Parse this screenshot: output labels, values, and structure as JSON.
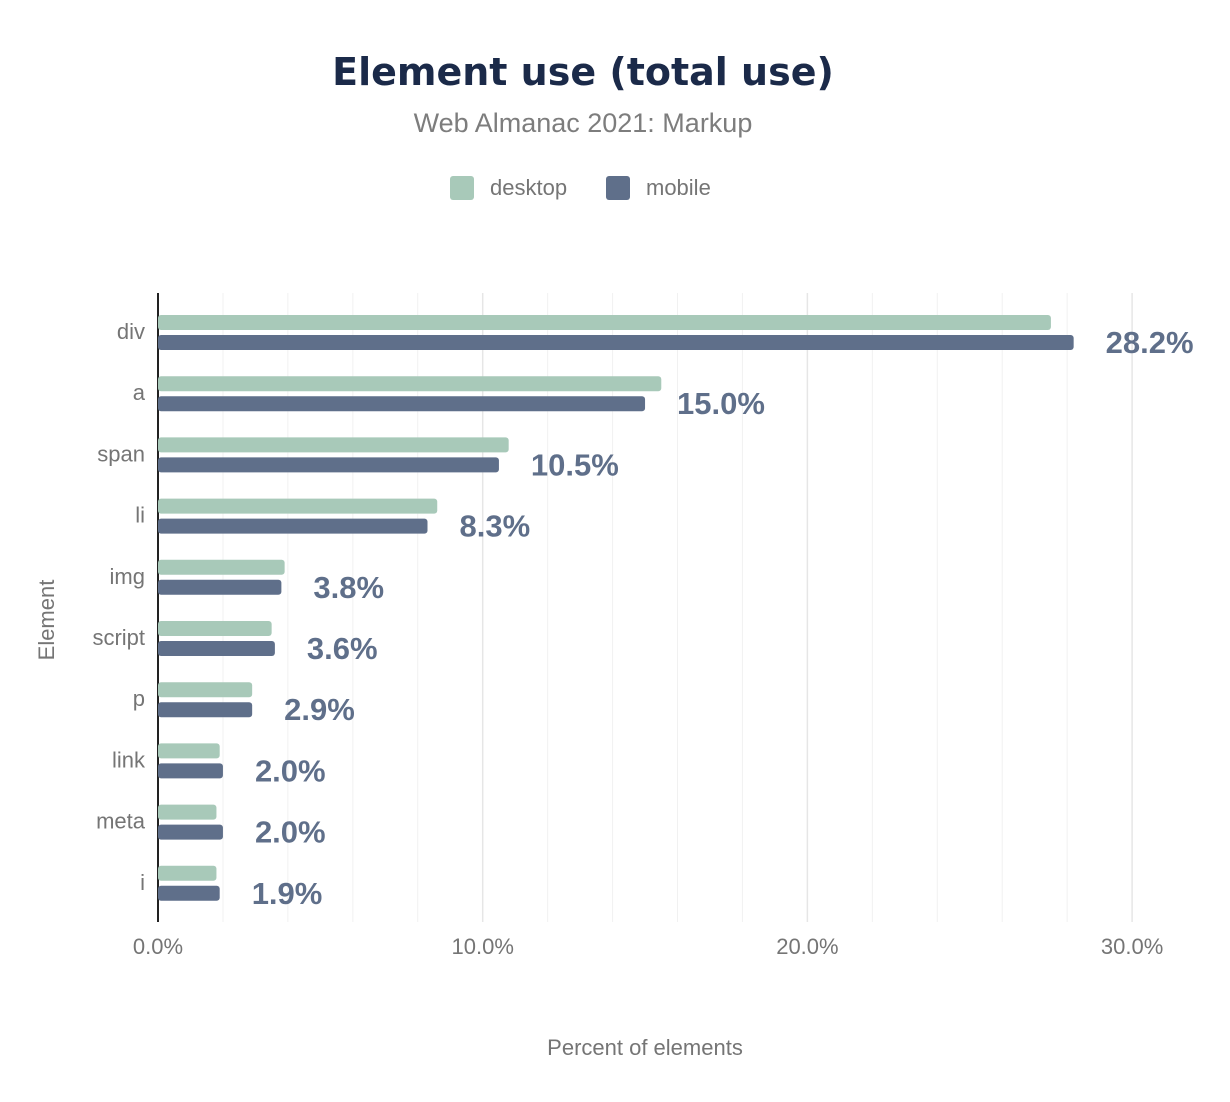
{
  "chart_data": {
    "type": "bar",
    "orientation": "horizontal",
    "title": "Element use (total use)",
    "subtitle": "Web Almanac 2021: Markup",
    "xlabel": "Percent of elements",
    "ylabel": "Element",
    "xlim": [
      0,
      31
    ],
    "x_ticks": [
      "0.0%",
      "10.0%",
      "20.0%",
      "30.0%"
    ],
    "x_tick_values": [
      0,
      10,
      20,
      30
    ],
    "grid": true,
    "legend_position": "top",
    "categories": [
      "div",
      "a",
      "span",
      "li",
      "img",
      "script",
      "p",
      "link",
      "meta",
      "i"
    ],
    "series": [
      {
        "name": "desktop",
        "color": "#a8c9b9",
        "values": [
          27.5,
          15.5,
          10.8,
          8.6,
          3.9,
          3.5,
          2.9,
          1.9,
          1.8,
          1.8
        ]
      },
      {
        "name": "mobile",
        "color": "#5f6f8a",
        "values": [
          28.2,
          15.0,
          10.5,
          8.3,
          3.8,
          3.6,
          2.9,
          2.0,
          2.0,
          1.9
        ]
      }
    ],
    "data_labels": [
      "28.2%",
      "15.0%",
      "10.5%",
      "8.3%",
      "3.8%",
      "3.6%",
      "2.9%",
      "2.0%",
      "2.0%",
      "1.9%"
    ]
  }
}
